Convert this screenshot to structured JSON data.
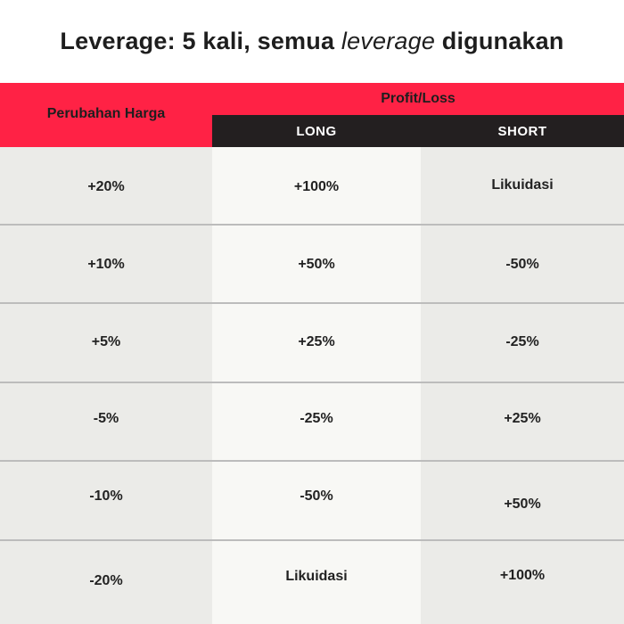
{
  "title": {
    "prefix": "Leverage: 5 kali, semua ",
    "emphasis": "leverage",
    "suffix": " digunakan"
  },
  "table": {
    "header_price": "Perubahan Harga",
    "header_profit_loss": "Profit/Loss",
    "header_long": "LONG",
    "header_short": "SHORT",
    "rows": [
      {
        "price": "+20%",
        "long": "+100%",
        "short": "Likuidasi"
      },
      {
        "price": "+10%",
        "long": "+50%",
        "short": "-50%"
      },
      {
        "price": "+5%",
        "long": "+25%",
        "short": "-25%"
      },
      {
        "price": "-5%",
        "long": "-25%",
        "short": "+25%"
      },
      {
        "price": "-10%",
        "long": "-50%",
        "short": "+50%"
      },
      {
        "price": "-20%",
        "long": "Likuidasi",
        "short": "+100%"
      }
    ]
  },
  "colors": {
    "header_red": "#ff2245",
    "header_dark": "#231f20",
    "row_gray": "#ebebe8",
    "row_light": "#f8f8f5"
  }
}
